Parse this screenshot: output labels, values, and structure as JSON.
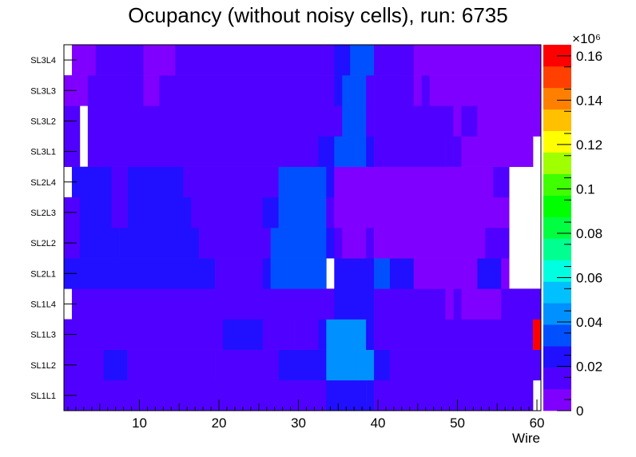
{
  "chart_data": {
    "type": "heatmap",
    "title": "Ocupancy (without noisy cells), run: 6735",
    "xlabel": "Wire",
    "ylabel": "",
    "x_ticks": [
      "10",
      "20",
      "30",
      "40",
      "50",
      "60"
    ],
    "xlim": [
      0.5,
      60.5
    ],
    "layers": [
      "SL1L1",
      "SL1L2",
      "SL1L3",
      "SL1L4",
      "SL2L1",
      "SL2L2",
      "SL2L3",
      "SL2L4",
      "SL3L1",
      "SL3L2",
      "SL3L3",
      "SL3L4"
    ],
    "z_multiplier": "×10⁶",
    "z_range": [
      0,
      0.165
    ],
    "z_ticks": [
      "0",
      "0.02",
      "0.04",
      "0.06",
      "0.08",
      "0.1",
      "0.12",
      "0.14",
      "0.16"
    ],
    "palette": [
      "#8000ff",
      "#5000ff",
      "#2010ff",
      "#0050ff",
      "#0090ff",
      "#00c0ff",
      "#00ffe0",
      "#00ff90",
      "#00ff40",
      "#00ff00",
      "#40ff00",
      "#a0ff00",
      "#ffff00",
      "#ffc000",
      "#ff8000",
      "#ff4000",
      "#ff0000"
    ],
    "rows": [
      {
        "layer": "SL1L1",
        "segments": [
          [
            1,
            32,
            0.013
          ],
          [
            33,
            33,
            0.018
          ],
          [
            34,
            38,
            0.029
          ],
          [
            39,
            39,
            0.02
          ],
          [
            40,
            59,
            0.013
          ],
          [
            60,
            60,
            null
          ]
        ]
      },
      {
        "layer": "SL1L2",
        "segments": [
          [
            1,
            2,
            0.016
          ],
          [
            3,
            5,
            0.013
          ],
          [
            6,
            8,
            0.021
          ],
          [
            9,
            19,
            0.013
          ],
          [
            20,
            26,
            0.019
          ],
          [
            27,
            27,
            0.013
          ],
          [
            28,
            33,
            0.02
          ],
          [
            34,
            36,
            0.039
          ],
          [
            37,
            37,
            0.048
          ],
          [
            38,
            39,
            0.039
          ],
          [
            40,
            41,
            0.021
          ],
          [
            42,
            60,
            0.013
          ]
        ]
      },
      {
        "layer": "SL1L3",
        "segments": [
          [
            1,
            2,
            0.016
          ],
          [
            3,
            5,
            0.013
          ],
          [
            6,
            6,
            0.016
          ],
          [
            7,
            20,
            0.013
          ],
          [
            21,
            25,
            0.02
          ],
          [
            26,
            29,
            0.013
          ],
          [
            30,
            32,
            0.019
          ],
          [
            33,
            33,
            0.028
          ],
          [
            34,
            35,
            0.039
          ],
          [
            36,
            36,
            0.045
          ],
          [
            37,
            38,
            0.039
          ],
          [
            39,
            39,
            0.029
          ],
          [
            40,
            59,
            0.013
          ],
          [
            60,
            60,
            0.165
          ]
        ]
      },
      {
        "layer": "SL1L4",
        "segments": [
          [
            1,
            1,
            null
          ],
          [
            2,
            34,
            0.013
          ],
          [
            35,
            39,
            0.028
          ],
          [
            40,
            48,
            0.014
          ],
          [
            49,
            49,
            0.009
          ],
          [
            50,
            50,
            0.014
          ],
          [
            51,
            55,
            0.009
          ],
          [
            56,
            60,
            0.014
          ]
        ]
      },
      {
        "layer": "SL2L1",
        "segments": [
          [
            1,
            19,
            0.021
          ],
          [
            20,
            25,
            0.013
          ],
          [
            26,
            26,
            0.021
          ],
          [
            27,
            33,
            0.031
          ],
          [
            34,
            34,
            null
          ],
          [
            35,
            39,
            0.021
          ],
          [
            40,
            41,
            0.031
          ],
          [
            42,
            44,
            0.021
          ],
          [
            45,
            52,
            0.009
          ],
          [
            53,
            55,
            0.021
          ],
          [
            56,
            56,
            0.009
          ],
          [
            57,
            60,
            null
          ]
        ]
      },
      {
        "layer": "SL2L2",
        "segments": [
          [
            1,
            2,
            0.016
          ],
          [
            3,
            7,
            0.021
          ],
          [
            8,
            17,
            0.021
          ],
          [
            18,
            26,
            0.013
          ],
          [
            27,
            33,
            0.031
          ],
          [
            34,
            34,
            0.021
          ],
          [
            35,
            35,
            0.013
          ],
          [
            36,
            38,
            0.009
          ],
          [
            39,
            39,
            0.013
          ],
          [
            40,
            53,
            0.009
          ],
          [
            54,
            56,
            0.013
          ],
          [
            57,
            60,
            null
          ]
        ]
      },
      {
        "layer": "SL2L3",
        "segments": [
          [
            1,
            2,
            0.016
          ],
          [
            3,
            6,
            0.021
          ],
          [
            7,
            8,
            0.013
          ],
          [
            9,
            16,
            0.021
          ],
          [
            17,
            25,
            0.013
          ],
          [
            26,
            27,
            0.021
          ],
          [
            28,
            33,
            0.031
          ],
          [
            34,
            34,
            0.013
          ],
          [
            35,
            56,
            0.009
          ],
          [
            57,
            60,
            null
          ]
        ]
      },
      {
        "layer": "SL2L4",
        "segments": [
          [
            1,
            1,
            null
          ],
          [
            2,
            6,
            0.021
          ],
          [
            7,
            8,
            0.013
          ],
          [
            9,
            15,
            0.021
          ],
          [
            16,
            27,
            0.013
          ],
          [
            28,
            33,
            0.031
          ],
          [
            34,
            34,
            0.021
          ],
          [
            35,
            54,
            0.009
          ],
          [
            55,
            56,
            0.013
          ],
          [
            57,
            60,
            null
          ]
        ]
      },
      {
        "layer": "SL3L1",
        "segments": [
          [
            1,
            2,
            0.013
          ],
          [
            3,
            3,
            null
          ],
          [
            4,
            32,
            0.013
          ],
          [
            33,
            34,
            0.026
          ],
          [
            35,
            38,
            0.035
          ],
          [
            39,
            39,
            0.026
          ],
          [
            40,
            48,
            0.013
          ],
          [
            49,
            49,
            0.019
          ],
          [
            50,
            50,
            0.013
          ],
          [
            51,
            59,
            0.009
          ],
          [
            60,
            60,
            null
          ]
        ]
      },
      {
        "layer": "SL3L2",
        "segments": [
          [
            1,
            2,
            0.013
          ],
          [
            3,
            3,
            null
          ],
          [
            4,
            4,
            0.013
          ],
          [
            5,
            33,
            0.013
          ],
          [
            34,
            35,
            0.019
          ],
          [
            36,
            38,
            0.035
          ],
          [
            39,
            39,
            0.019
          ],
          [
            40,
            49,
            0.013
          ],
          [
            50,
            50,
            0.009
          ],
          [
            51,
            52,
            0.013
          ],
          [
            53,
            53,
            0.009
          ],
          [
            54,
            60,
            0.009
          ]
        ]
      },
      {
        "layer": "SL3L3",
        "segments": [
          [
            1,
            3,
            0.009
          ],
          [
            4,
            10,
            0.013
          ],
          [
            11,
            12,
            0.009
          ],
          [
            13,
            33,
            0.013
          ],
          [
            34,
            34,
            0.019
          ],
          [
            35,
            35,
            0.026
          ],
          [
            36,
            38,
            0.035
          ],
          [
            39,
            39,
            0.013
          ],
          [
            40,
            44,
            0.013
          ],
          [
            45,
            45,
            0.009
          ],
          [
            46,
            46,
            0.013
          ],
          [
            47,
            60,
            0.009
          ]
        ]
      },
      {
        "layer": "SL3L4",
        "segments": [
          [
            1,
            1,
            null
          ],
          [
            2,
            4,
            0.009
          ],
          [
            5,
            10,
            0.013
          ],
          [
            11,
            14,
            0.009
          ],
          [
            15,
            34,
            0.013
          ],
          [
            35,
            36,
            0.021
          ],
          [
            37,
            39,
            0.035
          ],
          [
            40,
            44,
            0.013
          ],
          [
            45,
            60,
            0.009
          ]
        ]
      }
    ]
  }
}
